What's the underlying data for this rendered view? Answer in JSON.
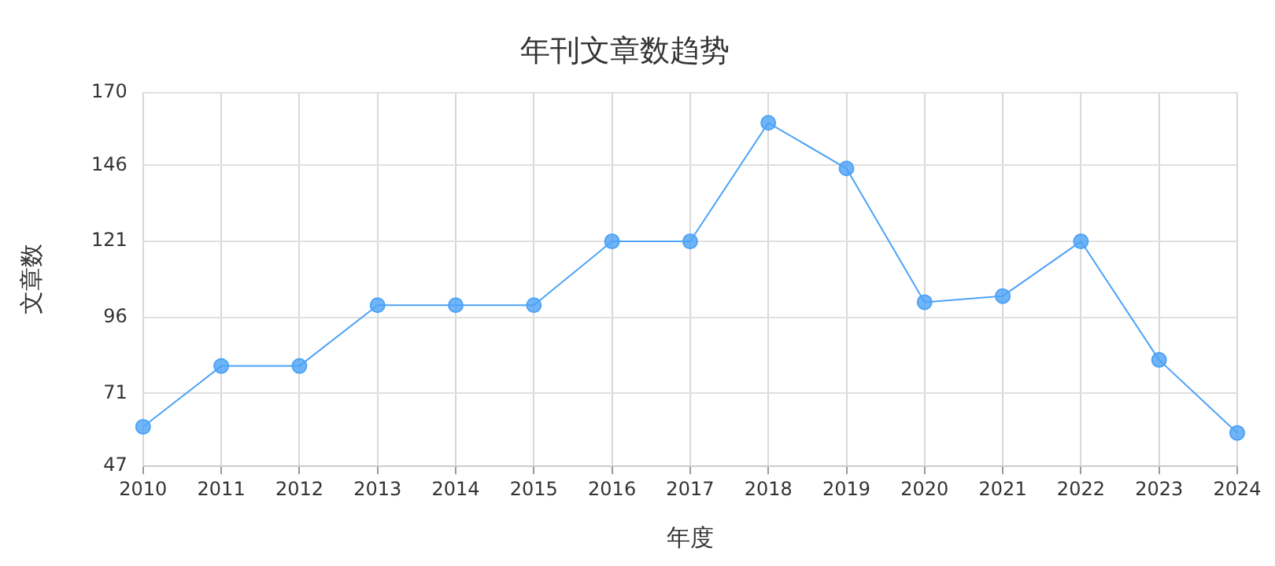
{
  "chart_data": {
    "type": "line",
    "title": "年刊文章数趋势",
    "xlabel": "年度",
    "ylabel": "文章数",
    "categories": [
      "2010",
      "2011",
      "2012",
      "2013",
      "2014",
      "2015",
      "2016",
      "2017",
      "2018",
      "2019",
      "2020",
      "2021",
      "2022",
      "2023",
      "2024"
    ],
    "series": [
      {
        "color": "#4da3f7",
        "values": [
          60,
          80,
          80,
          100,
          100,
          100,
          121,
          121,
          160,
          145,
          101,
          103,
          121,
          82,
          58
        ]
      }
    ],
    "ylim": [
      47,
      170
    ],
    "yticks": [
      47,
      71,
      96,
      121,
      146,
      170
    ],
    "grid": true,
    "legend": false,
    "marker": "circle",
    "line_style": "solid"
  }
}
